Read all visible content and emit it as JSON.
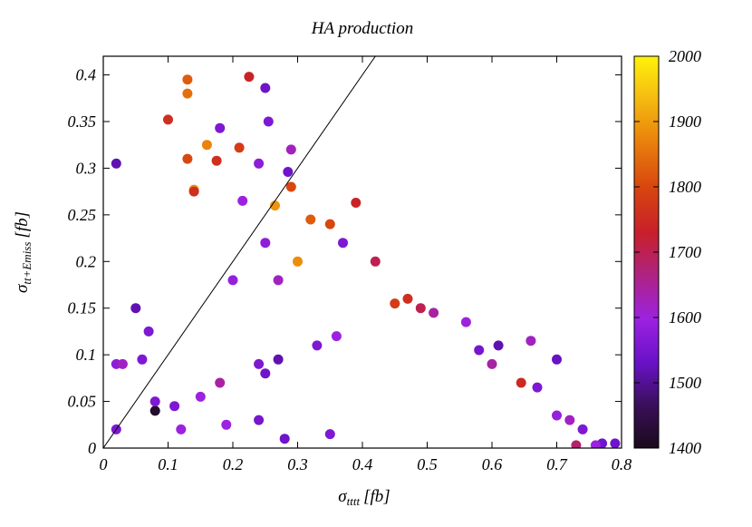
{
  "chart_data": {
    "type": "scatter",
    "title": "HA production",
    "xlabel": {
      "main": "σ",
      "sub": "tttt",
      "unit": "[fb]"
    },
    "ylabel": {
      "main": "σ",
      "sub": "tt+Emiss",
      "unit": "[fb]"
    },
    "xlim": [
      0,
      0.8
    ],
    "ylim": [
      0,
      0.42
    ],
    "xticks": [
      "0",
      "0.1",
      "0.2",
      "0.3",
      "0.4",
      "0.5",
      "0.6",
      "0.7",
      "0.8"
    ],
    "yticks": [
      "0",
      "0.05",
      "0.1",
      "0.15",
      "0.2",
      "0.25",
      "0.3",
      "0.35",
      "0.4"
    ],
    "colorbar": {
      "range": [
        1400,
        2000
      ],
      "ticks": [
        "1400",
        "1500",
        "1600",
        "1700",
        "1800",
        "1900",
        "2000"
      ],
      "stops": [
        "#1a0a1a",
        "#3a0f5a",
        "#6a12c8",
        "#9c22e0",
        "#b0237a",
        "#c81f2a",
        "#d8480e",
        "#ec8a0c",
        "#f5bf12",
        "#fff20a"
      ]
    },
    "reference_line": {
      "from": [
        0,
        0
      ],
      "to": [
        0.42,
        0.42
      ]
    },
    "series": [
      {
        "points": [
          [
            0.02,
            0.305,
            1520
          ],
          [
            0.13,
            0.395,
            1820
          ],
          [
            0.1,
            0.352,
            1760
          ],
          [
            0.13,
            0.38,
            1840
          ],
          [
            0.225,
            0.398,
            1740
          ],
          [
            0.25,
            0.386,
            1540
          ],
          [
            0.255,
            0.35,
            1560
          ],
          [
            0.18,
            0.343,
            1560
          ],
          [
            0.29,
            0.32,
            1620
          ],
          [
            0.13,
            0.31,
            1800
          ],
          [
            0.14,
            0.277,
            1880
          ],
          [
            0.14,
            0.275,
            1760
          ],
          [
            0.21,
            0.322,
            1780
          ],
          [
            0.16,
            0.325,
            1860
          ],
          [
            0.175,
            0.308,
            1760
          ],
          [
            0.215,
            0.265,
            1600
          ],
          [
            0.24,
            0.305,
            1580
          ],
          [
            0.285,
            0.296,
            1540
          ],
          [
            0.265,
            0.26,
            1880
          ],
          [
            0.29,
            0.28,
            1800
          ],
          [
            0.32,
            0.245,
            1820
          ],
          [
            0.35,
            0.24,
            1800
          ],
          [
            0.39,
            0.263,
            1740
          ],
          [
            0.37,
            0.22,
            1560
          ],
          [
            0.25,
            0.22,
            1580
          ],
          [
            0.2,
            0.18,
            1590
          ],
          [
            0.27,
            0.18,
            1620
          ],
          [
            0.3,
            0.2,
            1870
          ],
          [
            0.42,
            0.2,
            1700
          ],
          [
            0.45,
            0.155,
            1780
          ],
          [
            0.47,
            0.16,
            1760
          ],
          [
            0.49,
            0.15,
            1700
          ],
          [
            0.51,
            0.145,
            1640
          ],
          [
            0.56,
            0.135,
            1600
          ],
          [
            0.58,
            0.105,
            1550
          ],
          [
            0.61,
            0.11,
            1520
          ],
          [
            0.66,
            0.115,
            1620
          ],
          [
            0.7,
            0.095,
            1530
          ],
          [
            0.6,
            0.09,
            1640
          ],
          [
            0.645,
            0.07,
            1750
          ],
          [
            0.67,
            0.065,
            1560
          ],
          [
            0.7,
            0.035,
            1590
          ],
          [
            0.72,
            0.03,
            1620
          ],
          [
            0.74,
            0.02,
            1560
          ],
          [
            0.77,
            0.005,
            1540
          ],
          [
            0.79,
            0.005,
            1540
          ],
          [
            0.76,
            0.003,
            1600
          ],
          [
            0.73,
            0.003,
            1680
          ],
          [
            0.05,
            0.15,
            1520
          ],
          [
            0.07,
            0.125,
            1560
          ],
          [
            0.06,
            0.095,
            1560
          ],
          [
            0.02,
            0.09,
            1580
          ],
          [
            0.03,
            0.09,
            1620
          ],
          [
            0.08,
            0.04,
            1420
          ],
          [
            0.11,
            0.045,
            1560
          ],
          [
            0.15,
            0.055,
            1600
          ],
          [
            0.18,
            0.07,
            1640
          ],
          [
            0.24,
            0.09,
            1560
          ],
          [
            0.27,
            0.095,
            1520
          ],
          [
            0.33,
            0.11,
            1560
          ],
          [
            0.36,
            0.12,
            1600
          ],
          [
            0.25,
            0.08,
            1540
          ],
          [
            0.19,
            0.025,
            1600
          ],
          [
            0.24,
            0.03,
            1550
          ],
          [
            0.28,
            0.01,
            1540
          ],
          [
            0.35,
            0.015,
            1560
          ],
          [
            0.08,
            0.05,
            1560
          ],
          [
            0.12,
            0.02,
            1600
          ],
          [
            0.02,
            0.02,
            1560
          ]
        ]
      }
    ]
  }
}
